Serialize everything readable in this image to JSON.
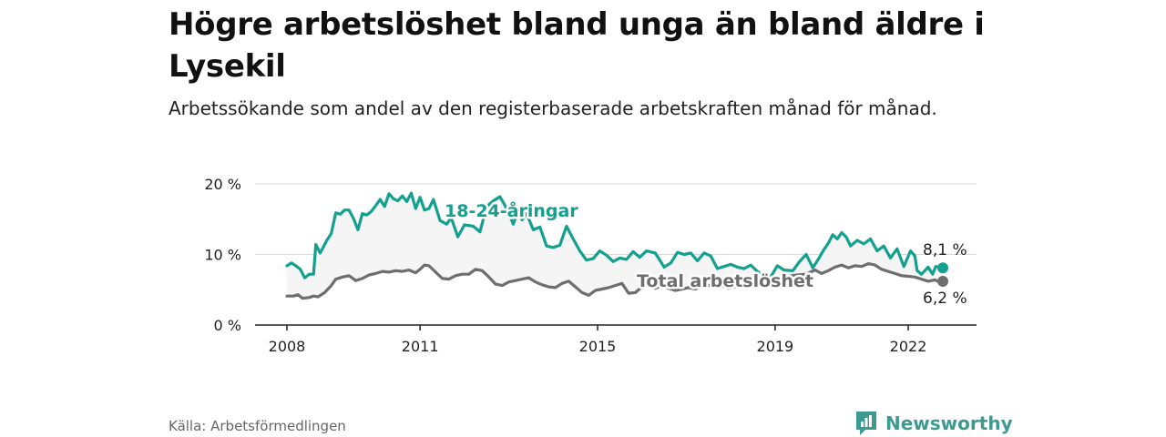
{
  "title": "Högre arbetslöshet bland unga än bland äldre i Lysekil",
  "subtitle": "Arbetssökande som andel av den registerbaserade arbetskraften månad för månad.",
  "source": "Källa: Arbetsförmedlingen",
  "brand": {
    "name": "Newsworthy",
    "icon": "newsworthy-logo-icon"
  },
  "colors": {
    "youth": "#13a08f",
    "total": "#6e6e6e",
    "grid": "#d9d9d9",
    "axis": "#222222",
    "fill": "#f5f5f5"
  },
  "chart_data": {
    "type": "line",
    "title": "Högre arbetslöshet bland unga än bland äldre i Lysekil",
    "xlabel": "",
    "ylabel": "",
    "xlim": [
      2008.0,
      2022.8
    ],
    "ylim": [
      0,
      20
    ],
    "x_ticks": [
      2008,
      2011,
      2015,
      2019,
      2022
    ],
    "x_tick_labels": [
      "2008",
      "2011",
      "2015",
      "2019",
      "2022"
    ],
    "y_ticks": [
      0,
      10,
      20
    ],
    "y_tick_labels": [
      "0 %",
      "10 %",
      "20 %"
    ],
    "grid": true,
    "series": [
      {
        "name": "18-24-åringar",
        "label": "18-24-åringar",
        "color": "#13a08f",
        "end_label": "8,1 %",
        "points": [
          [
            2008.0,
            8.4
          ],
          [
            2008.1,
            8.8
          ],
          [
            2008.2,
            8.4
          ],
          [
            2008.3,
            7.9
          ],
          [
            2008.4,
            6.7
          ],
          [
            2008.5,
            7.2
          ],
          [
            2008.6,
            7.2
          ],
          [
            2008.65,
            11.4
          ],
          [
            2008.75,
            10.2
          ],
          [
            2008.9,
            12.0
          ],
          [
            2009.0,
            13.0
          ],
          [
            2009.1,
            15.9
          ],
          [
            2009.2,
            15.7
          ],
          [
            2009.3,
            16.3
          ],
          [
            2009.4,
            16.3
          ],
          [
            2009.5,
            15.1
          ],
          [
            2009.6,
            13.5
          ],
          [
            2009.7,
            15.8
          ],
          [
            2009.8,
            15.6
          ],
          [
            2009.9,
            16.1
          ],
          [
            2010.0,
            16.9
          ],
          [
            2010.1,
            17.8
          ],
          [
            2010.2,
            16.8
          ],
          [
            2010.3,
            18.6
          ],
          [
            2010.4,
            17.9
          ],
          [
            2010.5,
            17.6
          ],
          [
            2010.6,
            18.3
          ],
          [
            2010.7,
            17.5
          ],
          [
            2010.8,
            18.7
          ],
          [
            2010.9,
            16.5
          ],
          [
            2011.0,
            18.1
          ],
          [
            2011.1,
            16.3
          ],
          [
            2011.2,
            16.5
          ],
          [
            2011.3,
            17.8
          ],
          [
            2011.45,
            14.8
          ],
          [
            2011.6,
            14.3
          ],
          [
            2011.7,
            15.2
          ],
          [
            2011.85,
            12.5
          ],
          [
            2012.0,
            14.2
          ],
          [
            2012.2,
            14.0
          ],
          [
            2012.35,
            13.2
          ],
          [
            2012.5,
            16.8
          ],
          [
            2012.65,
            17.6
          ],
          [
            2012.8,
            18.2
          ],
          [
            2012.9,
            17.1
          ],
          [
            2013.0,
            15.8
          ],
          [
            2013.1,
            14.3
          ],
          [
            2013.2,
            16.1
          ],
          [
            2013.3,
            14.9
          ],
          [
            2013.4,
            15.8
          ],
          [
            2013.55,
            13.5
          ],
          [
            2013.7,
            13.9
          ],
          [
            2013.85,
            11.2
          ],
          [
            2014.0,
            11.0
          ],
          [
            2014.15,
            11.3
          ],
          [
            2014.3,
            14.0
          ],
          [
            2014.45,
            12.2
          ],
          [
            2014.6,
            10.5
          ],
          [
            2014.75,
            9.2
          ],
          [
            2014.9,
            9.4
          ],
          [
            2015.05,
            10.5
          ],
          [
            2015.2,
            9.9
          ],
          [
            2015.35,
            9.0
          ],
          [
            2015.5,
            9.5
          ],
          [
            2015.65,
            9.3
          ],
          [
            2015.8,
            10.4
          ],
          [
            2015.95,
            9.6
          ],
          [
            2016.1,
            10.5
          ],
          [
            2016.3,
            10.2
          ],
          [
            2016.5,
            8.2
          ],
          [
            2016.65,
            8.8
          ],
          [
            2016.8,
            10.3
          ],
          [
            2016.95,
            10.0
          ],
          [
            2017.1,
            10.2
          ],
          [
            2017.25,
            9.1
          ],
          [
            2017.4,
            10.2
          ],
          [
            2017.55,
            9.8
          ],
          [
            2017.7,
            8.0
          ],
          [
            2017.85,
            8.3
          ],
          [
            2018.0,
            8.6
          ],
          [
            2018.15,
            8.2
          ],
          [
            2018.3,
            8.0
          ],
          [
            2018.45,
            8.5
          ],
          [
            2018.6,
            7.6
          ],
          [
            2018.75,
            7.0
          ],
          [
            2018.9,
            6.8
          ],
          [
            2019.05,
            8.4
          ],
          [
            2019.2,
            7.8
          ],
          [
            2019.4,
            7.7
          ],
          [
            2019.55,
            9.0
          ],
          [
            2019.7,
            10.0
          ],
          [
            2019.85,
            8.1
          ],
          [
            2020.0,
            9.6
          ],
          [
            2020.1,
            10.7
          ],
          [
            2020.2,
            11.6
          ],
          [
            2020.3,
            12.8
          ],
          [
            2020.4,
            12.2
          ],
          [
            2020.5,
            13.1
          ],
          [
            2020.6,
            12.5
          ],
          [
            2020.7,
            11.2
          ],
          [
            2020.85,
            12.0
          ],
          [
            2021.0,
            11.5
          ],
          [
            2021.15,
            12.2
          ],
          [
            2021.3,
            10.5
          ],
          [
            2021.45,
            11.2
          ],
          [
            2021.6,
            9.5
          ],
          [
            2021.75,
            10.8
          ],
          [
            2021.9,
            8.3
          ],
          [
            2022.05,
            10.5
          ],
          [
            2022.15,
            9.8
          ],
          [
            2022.2,
            7.7
          ],
          [
            2022.3,
            7.2
          ],
          [
            2022.45,
            8.2
          ],
          [
            2022.55,
            7.2
          ],
          [
            2022.62,
            8.3
          ],
          [
            2022.7,
            8.2
          ],
          [
            2022.78,
            8.1
          ]
        ]
      },
      {
        "name": "Total arbetslöshet",
        "label": "Total arbetslöshet",
        "color": "#6e6e6e",
        "end_label": "6,2 %",
        "points": [
          [
            2008.0,
            4.1
          ],
          [
            2008.15,
            4.1
          ],
          [
            2008.25,
            4.3
          ],
          [
            2008.35,
            3.8
          ],
          [
            2008.5,
            3.9
          ],
          [
            2008.6,
            4.1
          ],
          [
            2008.7,
            4.0
          ],
          [
            2008.85,
            4.6
          ],
          [
            2009.0,
            5.6
          ],
          [
            2009.1,
            6.5
          ],
          [
            2009.25,
            6.8
          ],
          [
            2009.4,
            7.0
          ],
          [
            2009.55,
            6.3
          ],
          [
            2009.7,
            6.6
          ],
          [
            2009.85,
            7.1
          ],
          [
            2010.0,
            7.3
          ],
          [
            2010.15,
            7.6
          ],
          [
            2010.3,
            7.5
          ],
          [
            2010.45,
            7.7
          ],
          [
            2010.6,
            7.6
          ],
          [
            2010.75,
            7.8
          ],
          [
            2010.9,
            7.4
          ],
          [
            2011.0,
            7.9
          ],
          [
            2011.1,
            8.5
          ],
          [
            2011.2,
            8.4
          ],
          [
            2011.35,
            7.5
          ],
          [
            2011.5,
            6.6
          ],
          [
            2011.65,
            6.5
          ],
          [
            2011.8,
            7.0
          ],
          [
            2011.95,
            7.2
          ],
          [
            2012.1,
            7.2
          ],
          [
            2012.25,
            7.9
          ],
          [
            2012.4,
            7.7
          ],
          [
            2012.55,
            6.8
          ],
          [
            2012.7,
            5.8
          ],
          [
            2012.85,
            5.6
          ],
          [
            2013.0,
            6.1
          ],
          [
            2013.15,
            6.3
          ],
          [
            2013.3,
            6.5
          ],
          [
            2013.45,
            6.7
          ],
          [
            2013.6,
            6.1
          ],
          [
            2013.75,
            5.7
          ],
          [
            2013.9,
            5.4
          ],
          [
            2014.05,
            5.3
          ],
          [
            2014.2,
            5.9
          ],
          [
            2014.35,
            6.2
          ],
          [
            2014.5,
            5.4
          ],
          [
            2014.65,
            4.6
          ],
          [
            2014.8,
            4.2
          ],
          [
            2014.95,
            4.9
          ],
          [
            2015.1,
            5.1
          ],
          [
            2015.25,
            5.3
          ],
          [
            2015.4,
            5.6
          ],
          [
            2015.55,
            5.9
          ],
          [
            2015.7,
            4.5
          ],
          [
            2015.85,
            4.6
          ],
          [
            2016.0,
            5.4
          ],
          [
            2016.15,
            5.6
          ],
          [
            2016.3,
            5.2
          ],
          [
            2016.45,
            5.6
          ],
          [
            2016.6,
            5.2
          ],
          [
            2016.75,
            4.9
          ],
          [
            2016.9,
            5.1
          ],
          [
            2017.05,
            5.3
          ],
          [
            2017.2,
            5.1
          ],
          [
            2017.35,
            5.5
          ],
          [
            2017.5,
            5.6
          ],
          [
            2017.65,
            5.5
          ],
          [
            2017.8,
            5.6
          ],
          [
            2017.95,
            5.2
          ],
          [
            2018.1,
            5.4
          ],
          [
            2018.3,
            5.9
          ],
          [
            2018.5,
            6.0
          ],
          [
            2018.7,
            6.2
          ],
          [
            2018.9,
            6.4
          ],
          [
            2019.1,
            6.3
          ],
          [
            2019.3,
            6.9
          ],
          [
            2019.5,
            7.1
          ],
          [
            2019.7,
            7.2
          ],
          [
            2019.9,
            7.8
          ],
          [
            2020.05,
            7.3
          ],
          [
            2020.2,
            7.7
          ],
          [
            2020.35,
            8.2
          ],
          [
            2020.5,
            8.5
          ],
          [
            2020.65,
            8.1
          ],
          [
            2020.8,
            8.4
          ],
          [
            2020.95,
            8.3
          ],
          [
            2021.1,
            8.7
          ],
          [
            2021.25,
            8.5
          ],
          [
            2021.4,
            7.9
          ],
          [
            2021.55,
            7.6
          ],
          [
            2021.7,
            7.3
          ],
          [
            2021.85,
            7.0
          ],
          [
            2022.0,
            6.9
          ],
          [
            2022.15,
            6.8
          ],
          [
            2022.3,
            6.5
          ],
          [
            2022.45,
            6.2
          ],
          [
            2022.6,
            6.4
          ],
          [
            2022.7,
            6.1
          ],
          [
            2022.78,
            6.2
          ]
        ]
      }
    ]
  }
}
